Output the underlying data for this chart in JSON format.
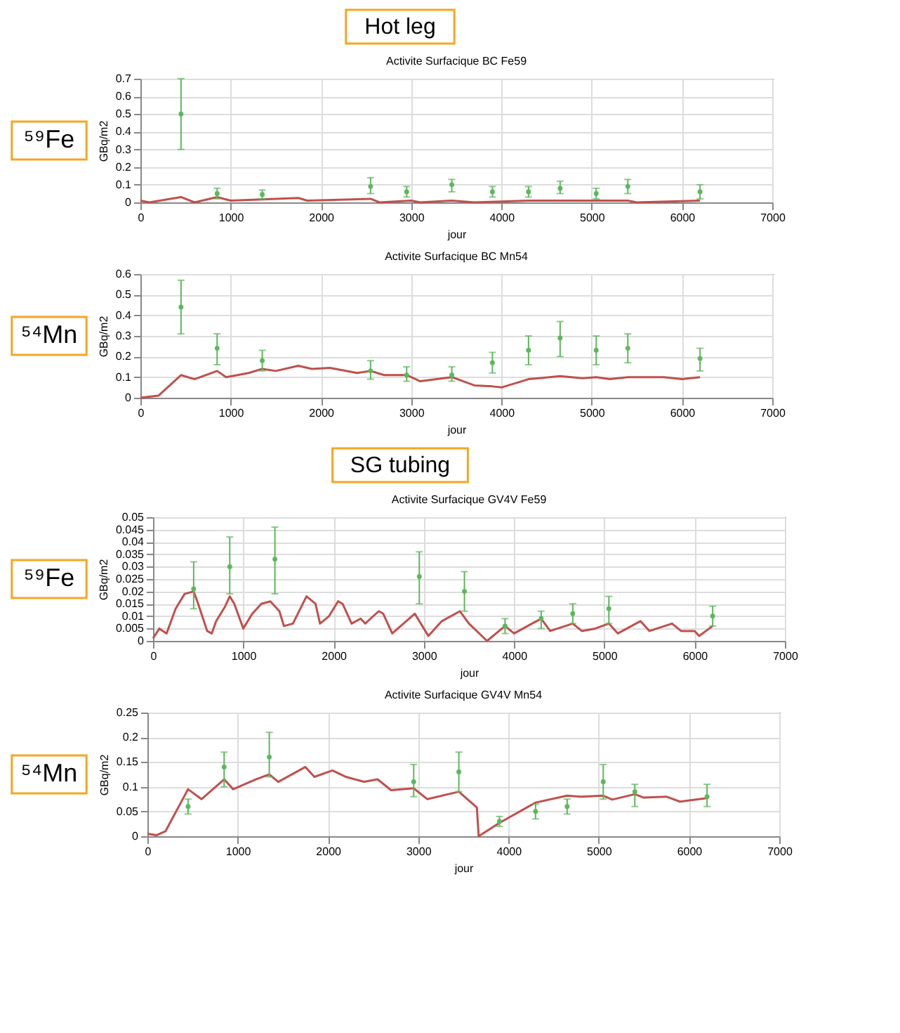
{
  "chart_data": [
    {
      "type": "line",
      "title": "Activite Surfacique BC Fe59",
      "xlabel": "jour",
      "ylabel": "GBq/m2",
      "annotations": [
        "⁵⁹Fe",
        "Hot leg"
      ],
      "xlim": [
        0,
        7000
      ],
      "xticks": [
        0,
        1000,
        2000,
        3000,
        4000,
        5000,
        6000,
        7000
      ],
      "ylim": [
        0,
        0.7
      ],
      "yticks": [
        0,
        0.1,
        0.2,
        0.3,
        0.4,
        0.5,
        0.6,
        0.7
      ],
      "grid": true,
      "series": [
        {
          "type": "line",
          "color": "#c0504d",
          "x": [
            0,
            100,
            450,
            600,
            850,
            1000,
            1750,
            1850,
            2550,
            2650,
            3000,
            3100,
            3450,
            3700,
            4300,
            5400,
            5500,
            6200
          ],
          "values": [
            0.01,
            0.0,
            0.03,
            0.0,
            0.03,
            0.01,
            0.025,
            0.01,
            0.02,
            0.0,
            0.01,
            0.0,
            0.01,
            0.0,
            0.01,
            0.01,
            0.0,
            0.01
          ]
        },
        {
          "type": "scatter",
          "color": "#5cb85c",
          "marker": "circle",
          "x": [
            450,
            850,
            1350,
            2550,
            2950,
            3450,
            3900,
            4300,
            4650,
            5050,
            5400,
            6200
          ],
          "values": [
            0.5,
            0.05,
            0.045,
            0.09,
            0.06,
            0.1,
            0.06,
            0.06,
            0.08,
            0.05,
            0.09,
            0.06
          ],
          "errors": [
            [
              0.3,
              0.7
            ],
            [
              0.02,
              0.08
            ],
            [
              0.02,
              0.07
            ],
            [
              0.05,
              0.14
            ],
            [
              0.03,
              0.09
            ],
            [
              0.06,
              0.13
            ],
            [
              0.03,
              0.09
            ],
            [
              0.03,
              0.09
            ],
            [
              0.05,
              0.12
            ],
            [
              0.02,
              0.08
            ],
            [
              0.05,
              0.13
            ],
            [
              0.02,
              0.1
            ]
          ]
        }
      ]
    },
    {
      "type": "line",
      "title": "Activite Surfacique BC Mn54",
      "xlabel": "jour",
      "ylabel": "GBq/m2",
      "annotations": [
        "⁵⁴Mn"
      ],
      "xlim": [
        0,
        7000
      ],
      "xticks": [
        0,
        1000,
        2000,
        3000,
        4000,
        5000,
        6000,
        7000
      ],
      "ylim": [
        0,
        0.6
      ],
      "yticks": [
        0,
        0.1,
        0.2,
        0.3,
        0.4,
        0.5,
        0.6
      ],
      "grid": true,
      "series": [
        {
          "type": "line",
          "color": "#c0504d",
          "x": [
            0,
            200,
            450,
            600,
            850,
            950,
            1200,
            1350,
            1500,
            1750,
            1900,
            2100,
            2400,
            2550,
            2700,
            2950,
            3100,
            3450,
            3700,
            3900,
            4000,
            4300,
            4650,
            4900,
            5050,
            5200,
            5400,
            5800,
            6000,
            6200
          ],
          "values": [
            0,
            0.01,
            0.11,
            0.09,
            0.13,
            0.1,
            0.12,
            0.14,
            0.13,
            0.155,
            0.14,
            0.145,
            0.12,
            0.13,
            0.11,
            0.11,
            0.08,
            0.1,
            0.06,
            0.055,
            0.05,
            0.09,
            0.105,
            0.095,
            0.1,
            0.09,
            0.1,
            0.1,
            0.09,
            0.1
          ]
        },
        {
          "type": "scatter",
          "color": "#5cb85c",
          "marker": "circle",
          "x": [
            450,
            850,
            1350,
            2550,
            2950,
            3450,
            3900,
            4300,
            4650,
            5050,
            5400,
            6200
          ],
          "values": [
            0.44,
            0.24,
            0.18,
            0.13,
            0.11,
            0.11,
            0.17,
            0.23,
            0.29,
            0.23,
            0.24,
            0.19
          ],
          "errors": [
            [
              0.31,
              0.57
            ],
            [
              0.16,
              0.31
            ],
            [
              0.13,
              0.23
            ],
            [
              0.09,
              0.18
            ],
            [
              0.08,
              0.15
            ],
            [
              0.08,
              0.15
            ],
            [
              0.12,
              0.22
            ],
            [
              0.16,
              0.3
            ],
            [
              0.2,
              0.37
            ],
            [
              0.16,
              0.3
            ],
            [
              0.17,
              0.31
            ],
            [
              0.13,
              0.24
            ]
          ]
        }
      ]
    },
    {
      "type": "line",
      "title": "Activite Surfacique GV4V Fe59",
      "xlabel": "jour",
      "ylabel": "GBq/m2",
      "annotations": [
        "⁵⁹Fe",
        "SG tubing"
      ],
      "xlim": [
        0,
        7000
      ],
      "xticks": [
        0,
        1000,
        2000,
        3000,
        4000,
        5000,
        6000,
        7000
      ],
      "ylim": [
        0,
        0.05
      ],
      "yticks": [
        0,
        0.005,
        0.01,
        0.015,
        0.02,
        0.025,
        0.03,
        0.035,
        0.04,
        0.045,
        0.05
      ],
      "grid": true,
      "series": [
        {
          "type": "line",
          "color": "#c0504d",
          "x": [
            0,
            70,
            150,
            250,
            350,
            450,
            500,
            600,
            650,
            700,
            800,
            850,
            900,
            1000,
            1100,
            1200,
            1300,
            1350,
            1400,
            1450,
            1550,
            1700,
            1800,
            1850,
            1950,
            2050,
            2100,
            2200,
            2300,
            2350,
            2500,
            2550,
            2650,
            2900,
            3000,
            3050,
            3200,
            3400,
            3500,
            3700,
            3900,
            4000,
            4300,
            4400,
            4650,
            4750,
            4900,
            5050,
            5150,
            5400,
            5500,
            5750,
            5850,
            6000,
            6050,
            6200
          ],
          "values": [
            0.001,
            0.005,
            0.003,
            0.013,
            0.019,
            0.02,
            0.015,
            0.004,
            0.003,
            0.008,
            0.014,
            0.018,
            0.015,
            0.005,
            0.011,
            0.015,
            0.016,
            0.014,
            0.012,
            0.006,
            0.007,
            0.018,
            0.015,
            0.007,
            0.01,
            0.016,
            0.015,
            0.007,
            0.009,
            0.007,
            0.012,
            0.011,
            0.003,
            0.011,
            0.005,
            0.002,
            0.008,
            0.012,
            0.007,
            0.0,
            0.006,
            0.003,
            0.009,
            0.004,
            0.007,
            0.004,
            0.005,
            0.007,
            0.003,
            0.008,
            0.004,
            0.007,
            0.004,
            0.004,
            0.002,
            0.006
          ]
        },
        {
          "type": "scatter",
          "color": "#5cb85c",
          "marker": "circle",
          "x": [
            450,
            850,
            1350,
            2950,
            3450,
            3900,
            4300,
            4650,
            5050,
            6200
          ],
          "values": [
            0.021,
            0.03,
            0.033,
            0.026,
            0.02,
            0.006,
            0.009,
            0.011,
            0.013,
            0.01
          ],
          "errors": [
            [
              0.013,
              0.032
            ],
            [
              0.019,
              0.042
            ],
            [
              0.019,
              0.046
            ],
            [
              0.015,
              0.036
            ],
            [
              0.012,
              0.028
            ],
            [
              0.003,
              0.009
            ],
            [
              0.005,
              0.012
            ],
            [
              0.007,
              0.015
            ],
            [
              0.007,
              0.018
            ],
            [
              0.006,
              0.014
            ]
          ]
        }
      ]
    },
    {
      "type": "line",
      "title": "Activite Surfacique GV4V Mn54",
      "xlabel": "jour",
      "ylabel": "GBq/m2",
      "annotations": [
        "⁵⁴Mn"
      ],
      "xlim": [
        0,
        7000
      ],
      "xticks": [
        0,
        1000,
        2000,
        3000,
        4000,
        5000,
        6000,
        7000
      ],
      "ylim": [
        0,
        0.25
      ],
      "yticks": [
        0,
        0.05,
        0.1,
        0.15,
        0.2,
        0.25
      ],
      "grid": true,
      "series": [
        {
          "type": "line",
          "color": "#c0504d",
          "x": [
            0,
            100,
            200,
            450,
            600,
            850,
            950,
            1200,
            1350,
            1450,
            1750,
            1850,
            2050,
            2200,
            2400,
            2550,
            2700,
            2950,
            3100,
            3450,
            3650,
            3670,
            3900,
            4300,
            4650,
            4800,
            5050,
            5150,
            5400,
            5500,
            5750,
            5900,
            6200
          ],
          "values": [
            0.005,
            0.002,
            0.01,
            0.095,
            0.075,
            0.115,
            0.095,
            0.115,
            0.125,
            0.11,
            0.14,
            0.12,
            0.133,
            0.12,
            0.11,
            0.115,
            0.093,
            0.097,
            0.075,
            0.09,
            0.058,
            0.0,
            0.027,
            0.068,
            0.082,
            0.08,
            0.082,
            0.074,
            0.085,
            0.078,
            0.08,
            0.07,
            0.077
          ]
        },
        {
          "type": "scatter",
          "color": "#5cb85c",
          "marker": "circle",
          "x": [
            450,
            850,
            1350,
            2950,
            3450,
            3900,
            4300,
            4650,
            5050,
            5400,
            6200
          ],
          "values": [
            0.06,
            0.14,
            0.16,
            0.11,
            0.13,
            0.03,
            0.05,
            0.06,
            0.11,
            0.09,
            0.08
          ],
          "errors": [
            [
              0.045,
              0.075
            ],
            [
              0.1,
              0.17
            ],
            [
              0.12,
              0.21
            ],
            [
              0.08,
              0.145
            ],
            [
              0.09,
              0.17
            ],
            [
              0.02,
              0.04
            ],
            [
              0.035,
              0.065
            ],
            [
              0.045,
              0.075
            ],
            [
              0.075,
              0.145
            ],
            [
              0.06,
              0.105
            ],
            [
              0.06,
              0.105
            ]
          ]
        }
      ]
    }
  ]
}
